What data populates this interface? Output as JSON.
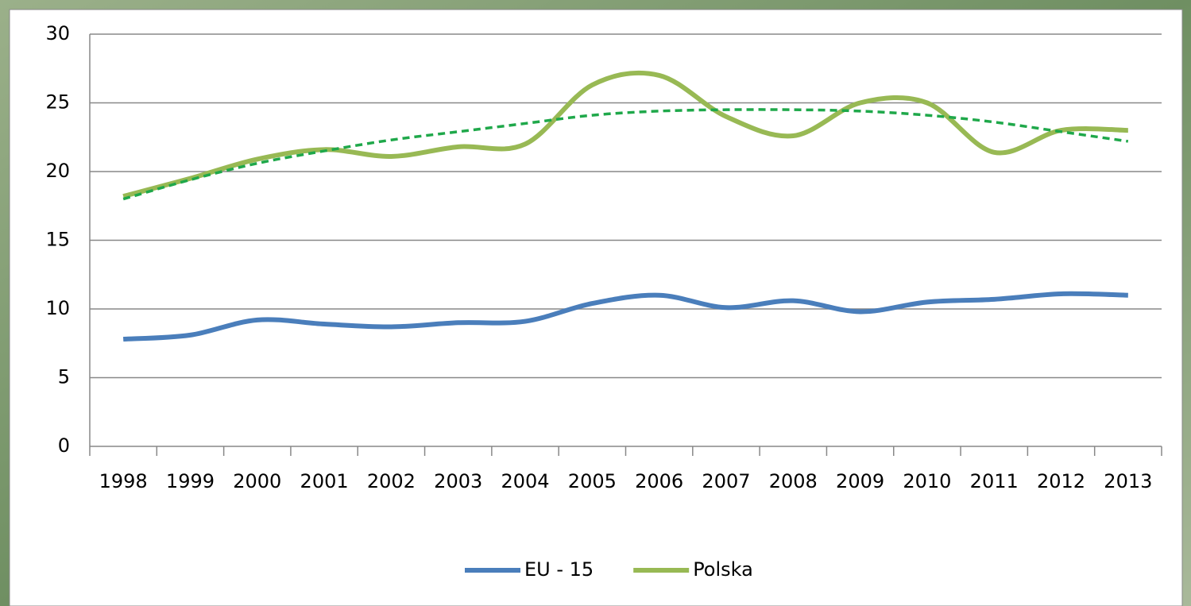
{
  "chart_data": {
    "type": "line",
    "categories": [
      "1998",
      "1999",
      "2000",
      "2001",
      "2002",
      "2003",
      "2004",
      "2005",
      "2006",
      "2007",
      "2008",
      "2009",
      "2010",
      "2011",
      "2012",
      "2013"
    ],
    "series": [
      {
        "name": "EU - 15",
        "color": "#4a7ebb",
        "values": [
          7.8,
          8.1,
          9.2,
          8.9,
          8.7,
          9.0,
          9.1,
          10.4,
          11.0,
          10.1,
          10.6,
          9.8,
          10.5,
          10.7,
          11.1,
          11.0
        ]
      },
      {
        "name": "Polska",
        "color": "#98b954",
        "values": [
          18.2,
          19.5,
          20.9,
          21.6,
          21.1,
          21.8,
          22.0,
          26.3,
          27.0,
          24.0,
          22.6,
          25.0,
          25.0,
          21.4,
          23.0,
          23.0
        ]
      }
    ],
    "trendline": {
      "color": "#1fa84a",
      "values": [
        18.0,
        19.4,
        20.6,
        21.5,
        22.3,
        22.9,
        23.5,
        24.1,
        24.4,
        24.5,
        24.5,
        24.4,
        24.1,
        23.6,
        22.9,
        22.2
      ]
    },
    "ylim": [
      0,
      30
    ],
    "yticks": [
      0,
      5,
      10,
      15,
      20,
      25,
      30
    ],
    "grid": true,
    "legend": "bottom"
  }
}
